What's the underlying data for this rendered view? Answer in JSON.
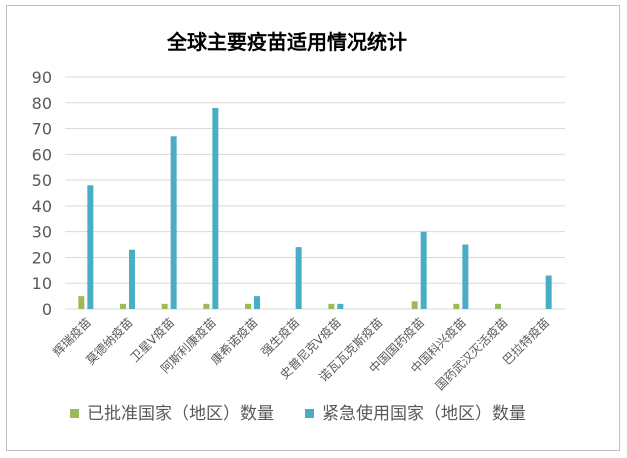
{
  "chart_data": {
    "type": "bar",
    "title": "全球主要疫苗适用情况统计",
    "categories": [
      "辉瑞疫苗",
      "莫德纳疫苗",
      "卫星V疫苗",
      "阿斯利康疫苗",
      "康希诺疫苗",
      "强生疫苗",
      "史普尼克V疫苗",
      "诺瓦瓦克斯疫苗",
      "中国国药疫苗",
      "中国科兴疫苗",
      "国药武汉灭活疫苗",
      "巴拉特疫苗"
    ],
    "series": [
      {
        "name": "已批准国家（地区）数量",
        "color": "#9bbb59",
        "values": [
          5,
          2,
          2,
          2,
          2,
          0,
          2,
          0,
          3,
          2,
          2,
          0
        ]
      },
      {
        "name": "紧急使用国家（地区）数量",
        "color": "#4bacc6",
        "values": [
          48,
          23,
          67,
          78,
          5,
          24,
          2,
          0,
          30,
          25,
          0,
          13
        ]
      }
    ],
    "ylim": [
      0,
      90
    ],
    "yticks": [
      "0",
      "10",
      "20",
      "30",
      "40",
      "50",
      "60",
      "70",
      "80",
      "90"
    ],
    "grid": true,
    "legend_position": "bottom"
  }
}
